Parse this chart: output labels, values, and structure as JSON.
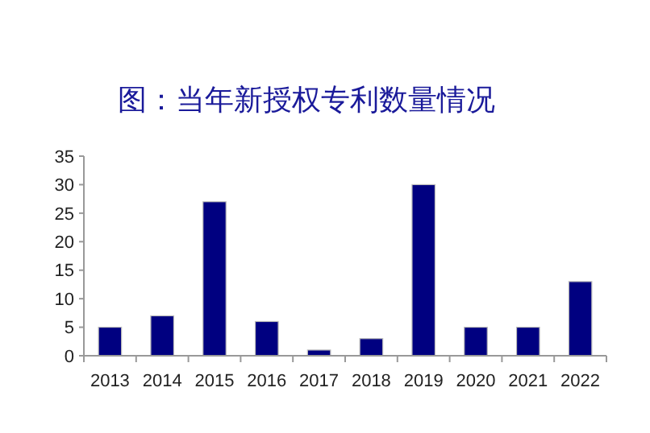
{
  "chart_data": {
    "type": "bar",
    "title": "图：当年新授权专利数量情况",
    "categories": [
      "2013",
      "2014",
      "2015",
      "2016",
      "2017",
      "2018",
      "2019",
      "2020",
      "2021",
      "2022"
    ],
    "values": [
      5,
      7,
      27,
      6,
      1,
      3,
      30,
      5,
      5,
      13
    ],
    "color": "#000080",
    "ylim": [
      0,
      35
    ],
    "yticks": [
      0,
      5,
      10,
      15,
      20,
      25,
      30,
      35
    ]
  }
}
